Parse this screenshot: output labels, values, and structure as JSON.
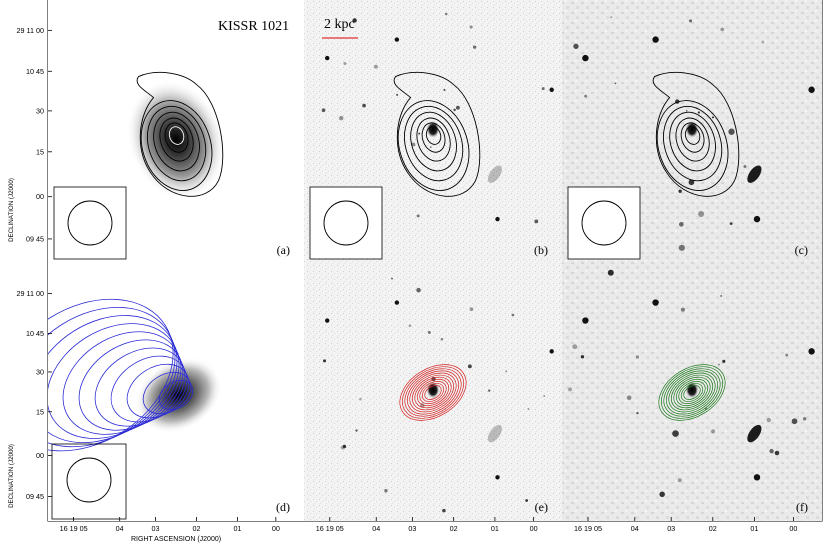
{
  "figure": {
    "object_name": "KISSR 1021",
    "scalebar_label": "2 kpc",
    "y_axis_label": "DECLINATION (J2000)",
    "x_axis_label": "RIGHT ASCENSION (J2000)",
    "y_tick_labels": [
      "29 11 00",
      "10 45",
      "30",
      "15",
      "00",
      "09 45"
    ],
    "x_tick_labels": [
      "16 19 05",
      "04",
      "03",
      "02",
      "01",
      "00"
    ],
    "colors": {
      "contour_black": "#000000",
      "contour_blue": "#2b2bd6",
      "contour_red": "#d42020",
      "contour_green": "#1c7a1c",
      "scalebar_red": "#e03030"
    }
  },
  "panels": [
    {
      "label": "(a)",
      "background": "smooth-grayscale",
      "contour_color": "black",
      "beam": "circle"
    },
    {
      "label": "(b)",
      "background": "optical-noisy",
      "contour_color": "black",
      "beam": "circle"
    },
    {
      "label": "(c)",
      "background": "optical-smoothed",
      "contour_color": "black",
      "beam": "circle"
    },
    {
      "label": "(d)",
      "background": "smooth-grayscale",
      "contour_color": "blue",
      "beam": "circle"
    },
    {
      "label": "(e)",
      "background": "optical-noisy",
      "contour_color": "red",
      "beam": "none"
    },
    {
      "label": "(f)",
      "background": "optical-smoothed",
      "contour_color": "green",
      "beam": "none"
    }
  ]
}
